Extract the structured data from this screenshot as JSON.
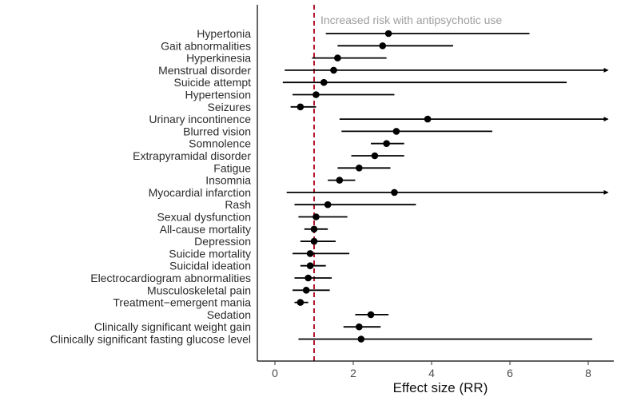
{
  "chart_data": {
    "type": "forest",
    "xlabel": "Effect size (RR)",
    "ylabel": "",
    "xlim": [
      -0.3,
      8.5
    ],
    "xticks": [
      0,
      2,
      4,
      6,
      8
    ],
    "reference_line": {
      "x": 1.0,
      "style": "dashed",
      "color": "#b2182b"
    },
    "annotation": "Increased risk with antipsychotic use",
    "point_color": "#000000",
    "line_color": "#000000",
    "grid": false,
    "rows": [
      {
        "label": "Hypertonia",
        "estimate": 2.9,
        "lower": 1.3,
        "upper": 6.5,
        "arrow": false
      },
      {
        "label": "Gait abnormalities",
        "estimate": 2.75,
        "lower": 1.6,
        "upper": 4.55,
        "arrow": false
      },
      {
        "label": "Hyperkinesia",
        "estimate": 1.6,
        "lower": 0.95,
        "upper": 2.85,
        "arrow": false
      },
      {
        "label": "Menstrual disorder",
        "estimate": 1.5,
        "lower": 0.25,
        "upper": 8.5,
        "arrow": true
      },
      {
        "label": "Suicide attempt",
        "estimate": 1.25,
        "lower": 0.2,
        "upper": 7.45,
        "arrow": false
      },
      {
        "label": "Hypertension",
        "estimate": 1.05,
        "lower": 0.45,
        "upper": 3.05,
        "arrow": false
      },
      {
        "label": "Seizures",
        "estimate": 0.65,
        "lower": 0.4,
        "upper": 1.05,
        "arrow": false
      },
      {
        "label": "Urinary incontinence",
        "estimate": 3.9,
        "lower": 1.65,
        "upper": 8.5,
        "arrow": true
      },
      {
        "label": "Blurred vision",
        "estimate": 3.1,
        "lower": 1.7,
        "upper": 5.55,
        "arrow": false
      },
      {
        "label": "Somnolence",
        "estimate": 2.85,
        "lower": 2.45,
        "upper": 3.3,
        "arrow": false
      },
      {
        "label": "Extrapyramidal disorder",
        "estimate": 2.55,
        "lower": 1.95,
        "upper": 3.3,
        "arrow": false
      },
      {
        "label": "Fatigue",
        "estimate": 2.15,
        "lower": 1.6,
        "upper": 2.95,
        "arrow": false
      },
      {
        "label": "Insomnia",
        "estimate": 1.65,
        "lower": 1.35,
        "upper": 2.05,
        "arrow": false
      },
      {
        "label": "Myocardial infarction",
        "estimate": 3.05,
        "lower": 0.3,
        "upper": 8.5,
        "arrow": true
      },
      {
        "label": "Rash",
        "estimate": 1.35,
        "lower": 0.5,
        "upper": 3.6,
        "arrow": false
      },
      {
        "label": "Sexual dysfunction",
        "estimate": 1.05,
        "lower": 0.6,
        "upper": 1.85,
        "arrow": false
      },
      {
        "label": "All-cause mortality",
        "estimate": 1.0,
        "lower": 0.75,
        "upper": 1.35,
        "arrow": false
      },
      {
        "label": "Depression",
        "estimate": 1.0,
        "lower": 0.65,
        "upper": 1.55,
        "arrow": false
      },
      {
        "label": "Suicide mortality",
        "estimate": 0.9,
        "lower": 0.45,
        "upper": 1.9,
        "arrow": false
      },
      {
        "label": "Suicidal ideation",
        "estimate": 0.9,
        "lower": 0.65,
        "upper": 1.3,
        "arrow": false
      },
      {
        "label": "Electrocardiogram abnormalities",
        "estimate": 0.85,
        "lower": 0.5,
        "upper": 1.45,
        "arrow": false
      },
      {
        "label": "Musculoskeletal pain",
        "estimate": 0.8,
        "lower": 0.45,
        "upper": 1.4,
        "arrow": false
      },
      {
        "label": "Treatment−emergent mania",
        "estimate": 0.65,
        "lower": 0.5,
        "upper": 0.85,
        "arrow": false
      },
      {
        "label": "Sedation",
        "estimate": 2.45,
        "lower": 2.05,
        "upper": 2.9,
        "arrow": false
      },
      {
        "label": "Clinically significant weight gain",
        "estimate": 2.15,
        "lower": 1.75,
        "upper": 2.7,
        "arrow": false
      },
      {
        "label": "Clinically significant fasting glucose level",
        "estimate": 2.2,
        "lower": 0.6,
        "upper": 8.1,
        "arrow": false
      }
    ]
  }
}
